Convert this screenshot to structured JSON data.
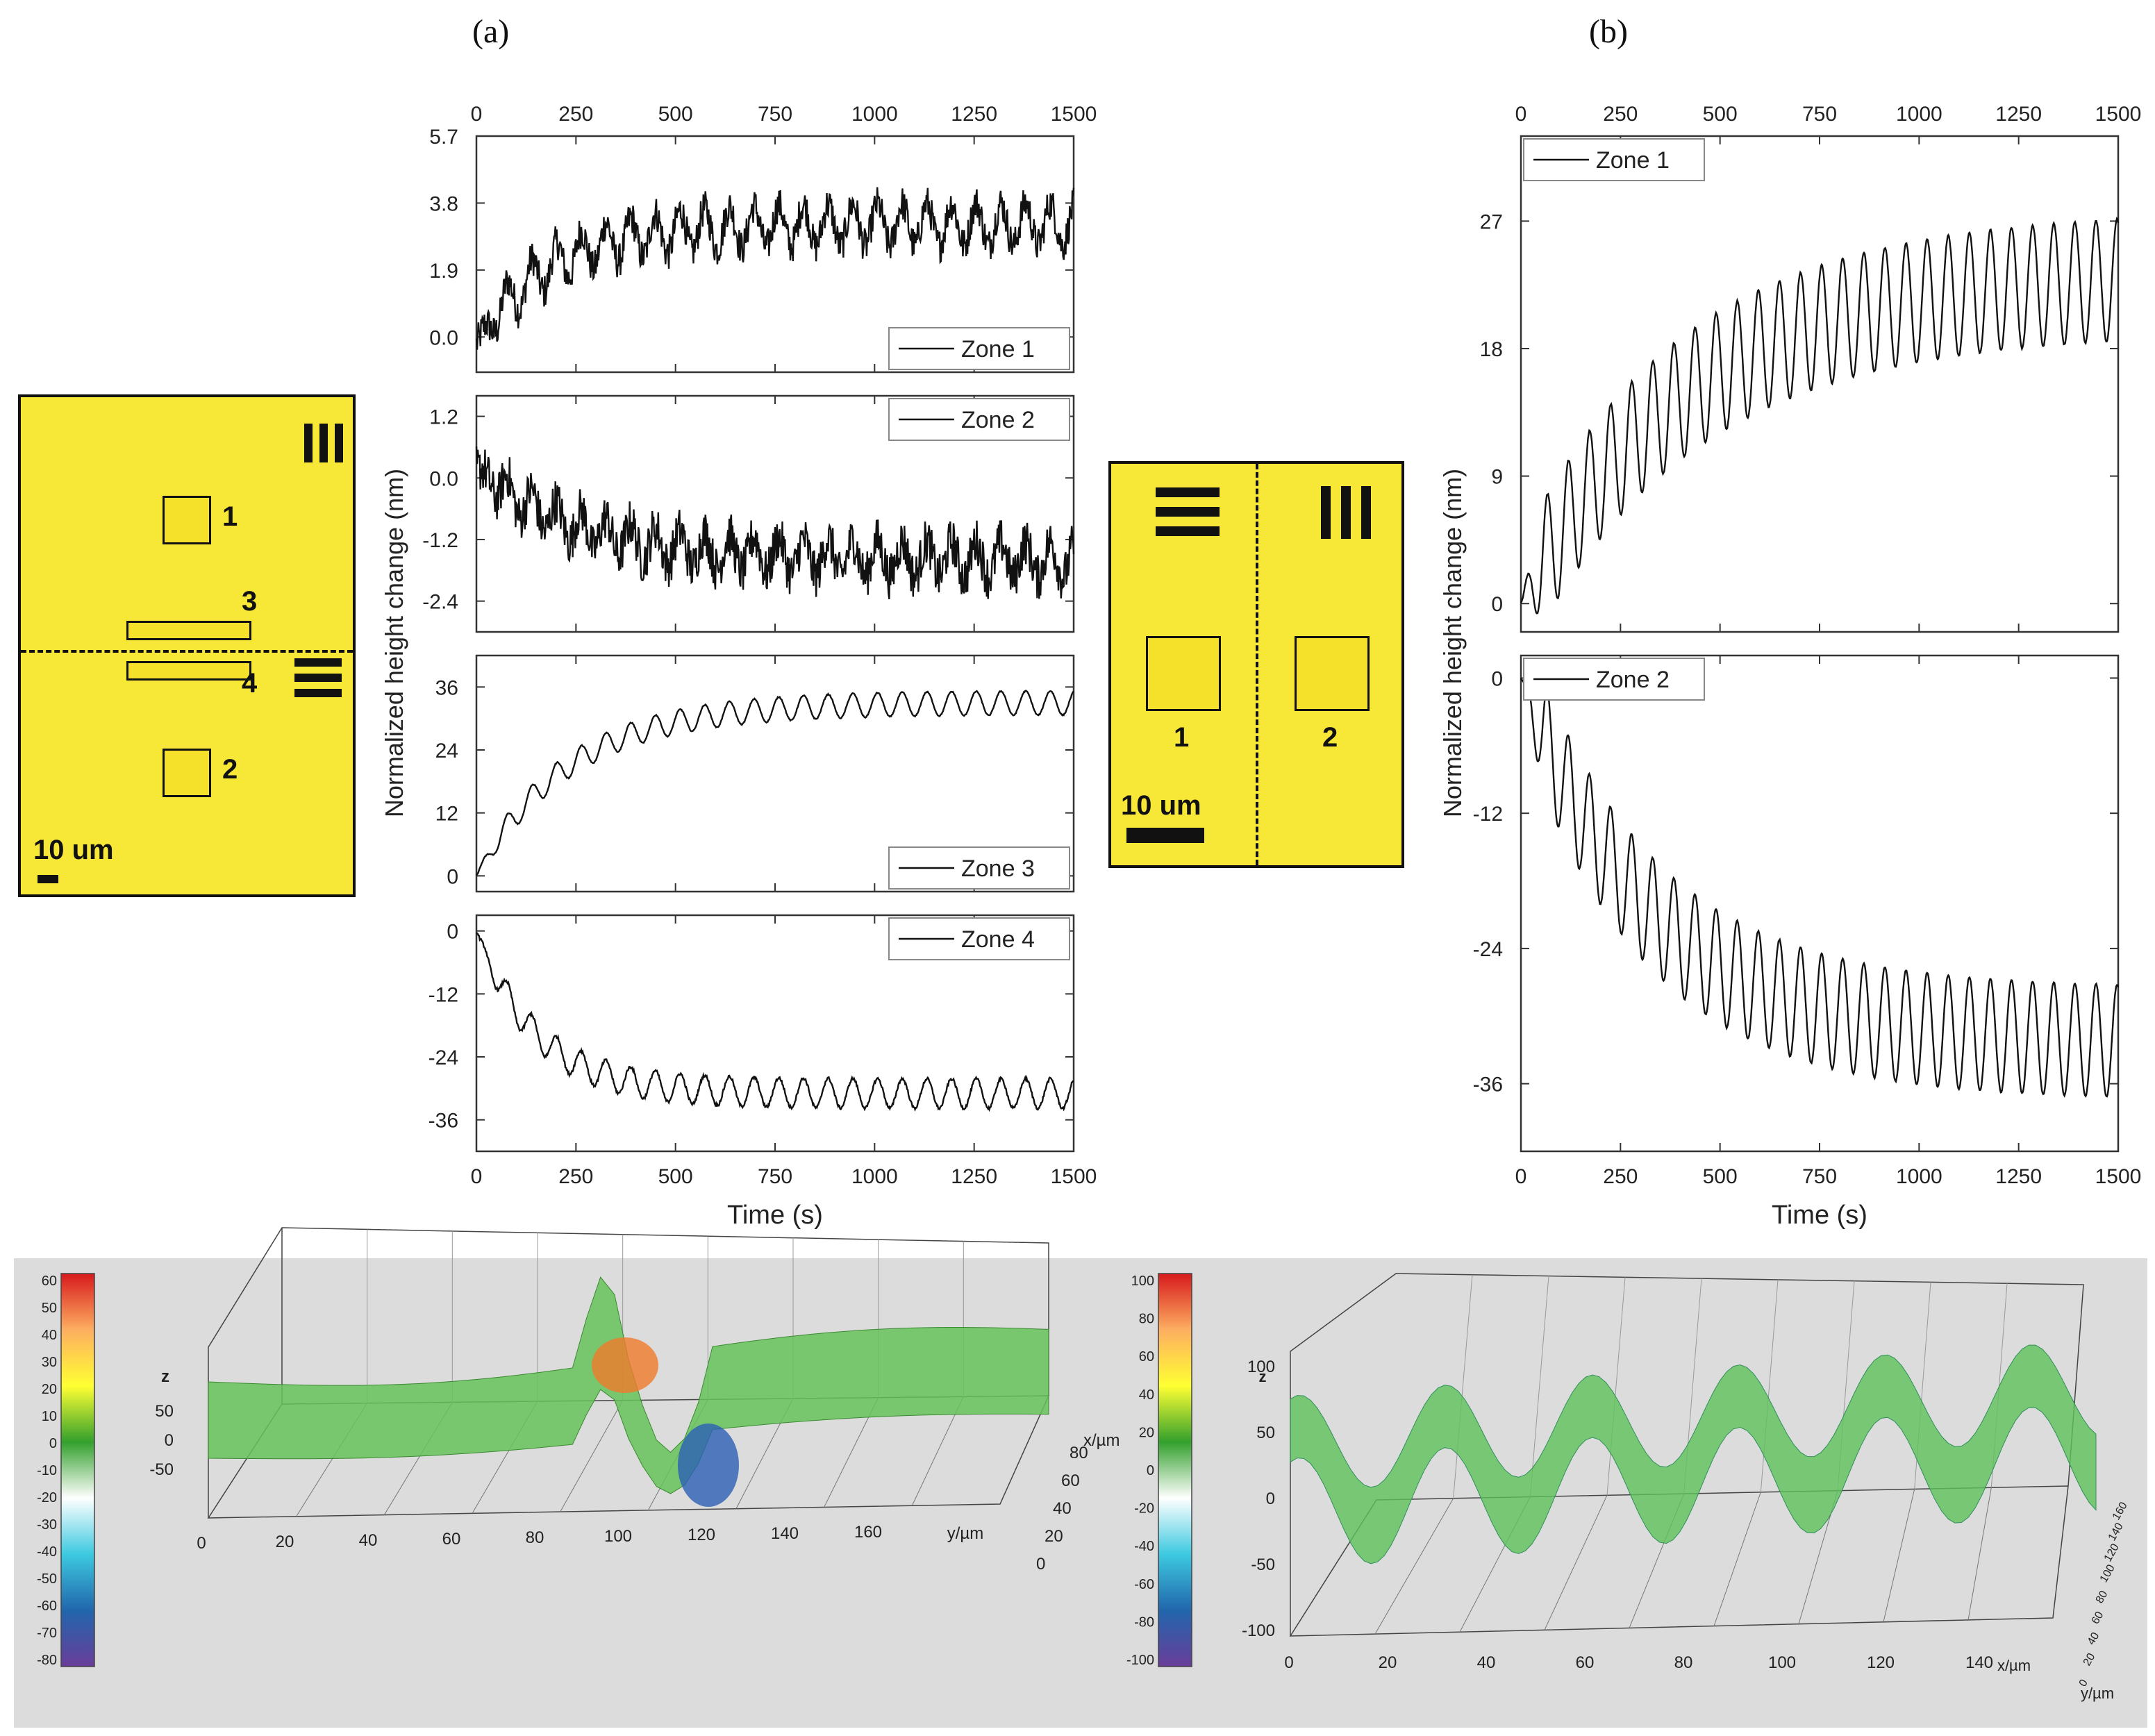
{
  "figure": {
    "label_a": "(a)",
    "label_b": "(b)"
  },
  "schematic_a": {
    "orientation_v": "III",
    "orientation_h": "☰",
    "zone_labels": [
      "1",
      "2",
      "3",
      "4"
    ],
    "scale_text": "10 um",
    "fill_color": "#f7e838"
  },
  "schematic_b": {
    "zone_labels": [
      "1",
      "2"
    ],
    "scale_text": "10 um",
    "fill_color": "#f7e838"
  },
  "chart_data": [
    {
      "type": "line",
      "panel": "a",
      "title": "Zone 1",
      "legend": "Zone 1",
      "xlabel": "Time (s)",
      "ylabel": "Normalized height change (nm)",
      "xlim": [
        0,
        1500
      ],
      "ylim": [
        -1.0,
        5.7
      ],
      "xticks": [
        0,
        250,
        500,
        750,
        1000,
        1250,
        1500
      ],
      "yticks": [
        0.0,
        1.9,
        3.8,
        5.7
      ],
      "ytick_labels": [
        "0.0",
        "1.9",
        "3.8",
        "5.7"
      ],
      "trend": {
        "start": -0.2,
        "plateau": 3.2,
        "tau": 180
      },
      "oscillation": {
        "amp": 0.6,
        "period": 62
      },
      "noise": 0.5
    },
    {
      "type": "line",
      "panel": "a",
      "title": "Zone 2",
      "legend": "Zone 2",
      "xlim": [
        0,
        1500
      ],
      "ylim": [
        -3.0,
        1.6
      ],
      "xticks": [
        0,
        250,
        500,
        750,
        1000,
        1250,
        1500
      ],
      "yticks": [
        -2.4,
        -1.2,
        0.0,
        1.2
      ],
      "ytick_labels": [
        "-2.4",
        "-1.2",
        "0.0",
        "1.2"
      ],
      "trend": {
        "start": 0.2,
        "plateau": -1.6,
        "tau": 250
      },
      "oscillation": {
        "amp": 0.35,
        "period": 62
      },
      "noise": 0.45
    },
    {
      "type": "line",
      "panel": "a",
      "title": "Zone 3",
      "legend": "Zone 3",
      "xlim": [
        0,
        1500
      ],
      "ylim": [
        -3,
        42
      ],
      "xticks": [
        0,
        250,
        500,
        750,
        1000,
        1250,
        1500
      ],
      "yticks": [
        0,
        12,
        24,
        36
      ],
      "ytick_labels": [
        "0",
        "12",
        "24",
        "36"
      ],
      "trend": {
        "start": 0,
        "plateau": 33,
        "tau": 230
      },
      "oscillation": {
        "amp": 2.3,
        "period": 62
      },
      "noise": 0.1
    },
    {
      "type": "line",
      "panel": "a",
      "title": "Zone 4",
      "legend": "Zone 4",
      "xlabel": "Time (s)",
      "xlim": [
        0,
        1500
      ],
      "ylim": [
        -42,
        3
      ],
      "xticks": [
        0,
        250,
        500,
        750,
        1000,
        1250,
        1500
      ],
      "yticks": [
        -36,
        -24,
        -12,
        0
      ],
      "ytick_labels": [
        "-36",
        "-24",
        "-12",
        "0"
      ],
      "trend": {
        "start": 0,
        "plateau": -31,
        "tau": 150
      },
      "oscillation": {
        "amp": 2.8,
        "period": 62
      },
      "noise": 0.3
    },
    {
      "type": "line",
      "panel": "b",
      "title": "Zone 1",
      "legend": "Zone 1",
      "xlabel": "Time (s)",
      "ylabel": "Normalized height change (nm)",
      "xlim": [
        0,
        1500
      ],
      "ylim": [
        -2,
        33
      ],
      "xticks": [
        0,
        250,
        500,
        750,
        1000,
        1250,
        1500
      ],
      "yticks": [
        0,
        9,
        18,
        27
      ],
      "ytick_labels": [
        "0",
        "9",
        "18",
        "27"
      ],
      "trend": {
        "start": 0,
        "plateau": 23.5,
        "tau": 420
      },
      "oscillation": {
        "amp": 4.3,
        "period": 53
      },
      "noise": 0.05
    },
    {
      "type": "line",
      "panel": "b",
      "title": "Zone 2",
      "legend": "Zone 2",
      "xlabel": "Time (s)",
      "ylim": [
        -42,
        2
      ],
      "xlim": [
        0,
        1500
      ],
      "xticks": [
        0,
        250,
        500,
        750,
        1000,
        1250,
        1500
      ],
      "yticks": [
        -36,
        -24,
        -12,
        0
      ],
      "ytick_labels": [
        "-36",
        "-24",
        "-12",
        "0"
      ],
      "trend": {
        "start": 0,
        "plateau": -32.5,
        "tau": 320
      },
      "oscillation": {
        "amp": 5.0,
        "period": 53
      },
      "noise": 0.05
    }
  ],
  "surface_a": {
    "colorbar_ticks": [
      "60",
      "50",
      "40",
      "30",
      "20",
      "10",
      "0",
      "-10",
      "-20",
      "-30",
      "-40",
      "-50",
      "-60",
      "-70",
      "-80"
    ],
    "z_label": "z",
    "z_ticks": [
      "50",
      "0",
      "-50"
    ],
    "y_ticks": [
      "0",
      "20",
      "40",
      "60",
      "80",
      "100",
      "120",
      "140",
      "160"
    ],
    "y_label": "y/µm",
    "x_ticks": [
      "80",
      "60",
      "40",
      "20",
      "0"
    ],
    "x_label": "x/µm"
  },
  "surface_b": {
    "colorbar_ticks": [
      "100",
      "80",
      "60",
      "40",
      "20",
      "0",
      "-20",
      "-40",
      "-60",
      "-80",
      "-100"
    ],
    "z_label": "z",
    "z_ticks": [
      "100",
      "50",
      "0",
      "-50",
      "-100"
    ],
    "x_ticks": [
      "0",
      "20",
      "40",
      "60",
      "80",
      "100",
      "120",
      "140"
    ],
    "x_label": "x/µm",
    "y_label": "y/µm",
    "y_ticks": [
      "0",
      "20",
      "40",
      "60",
      "80",
      "100",
      "120",
      "140",
      "160"
    ]
  }
}
